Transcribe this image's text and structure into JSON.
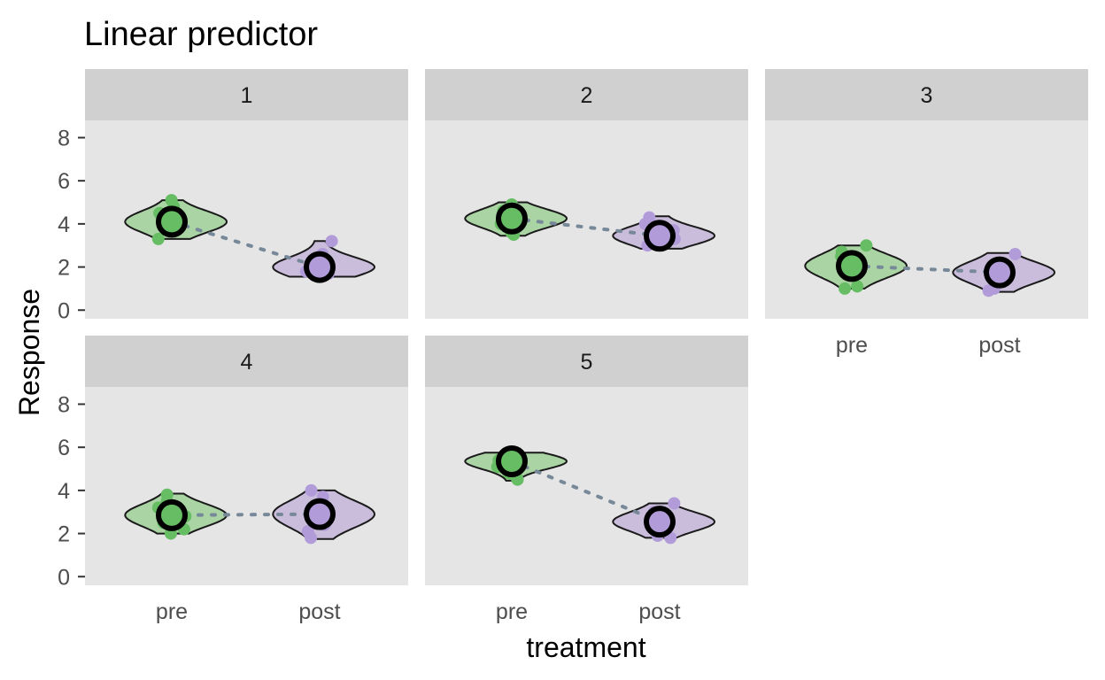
{
  "chart_data": {
    "type": "violin",
    "title": "Linear predictor",
    "xlabel": "treatment",
    "ylabel": "Response",
    "ylim": [
      -0.4,
      8.8
    ],
    "yticks": [
      0,
      2,
      4,
      6,
      8
    ],
    "ytick_labels": [
      "0",
      "2",
      "4",
      "6",
      "8"
    ],
    "categories": [
      "pre",
      "post"
    ],
    "grid": false,
    "legend": "none",
    "colors": {
      "pre": "#66bd63",
      "post": "#b19cd9",
      "pre_fill": "#aad4a4",
      "post_fill": "#c9bddb",
      "panel_bg": "#e5e5e5",
      "strip_bg": "#d0d0d0",
      "connector": "#778899",
      "outline": "#1a1a1a"
    },
    "panels": [
      {
        "label": "1",
        "summary": {
          "pre": 4.1,
          "post": 2.0
        },
        "violin_range": {
          "pre": [
            3.3,
            5.1
          ],
          "post": [
            1.55,
            3.2
          ]
        },
        "points": {
          "pre": [
            5.1,
            4.8,
            4.5,
            4.2,
            3.9,
            4.4,
            3.3
          ],
          "post": [
            3.2,
            2.6,
            2.2,
            1.9,
            1.7,
            2.4,
            1.8
          ]
        }
      },
      {
        "label": "2",
        "summary": {
          "pre": 4.25,
          "post": 3.45
        },
        "violin_range": {
          "pre": [
            3.45,
            5.0
          ],
          "post": [
            2.85,
            4.35
          ]
        },
        "points": {
          "pre": [
            4.9,
            4.6,
            4.3,
            4.0,
            3.5,
            3.6
          ],
          "post": [
            4.3,
            4.0,
            3.7,
            3.3,
            3.0,
            3.9
          ]
        }
      },
      {
        "label": "3",
        "summary": {
          "pre": 2.05,
          "post": 1.75
        },
        "violin_range": {
          "pre": [
            1.0,
            3.0
          ],
          "post": [
            0.85,
            2.65
          ]
        },
        "points": {
          "pre": [
            3.0,
            2.7,
            2.4,
            2.1,
            1.1,
            1.0,
            2.5
          ],
          "post": [
            2.6,
            2.2,
            1.9,
            1.5,
            1.0,
            0.9,
            2.0
          ]
        }
      },
      {
        "label": "4",
        "summary": {
          "pre": 2.85,
          "post": 2.9
        },
        "violin_range": {
          "pre": [
            2.0,
            3.85
          ],
          "post": [
            1.75,
            4.0
          ]
        },
        "points": {
          "pre": [
            3.8,
            3.5,
            3.2,
            2.8,
            2.5,
            2.2,
            2.0
          ],
          "post": [
            4.0,
            3.7,
            3.3,
            2.9,
            2.4,
            2.1,
            1.8
          ]
        }
      },
      {
        "label": "5",
        "summary": {
          "pre": 5.35,
          "post": 2.55
        },
        "violin_range": {
          "pre": [
            4.45,
            5.75
          ],
          "post": [
            1.8,
            3.4
          ]
        },
        "points": {
          "pre": [
            5.7,
            5.4,
            5.1,
            4.8,
            4.5,
            4.6
          ],
          "post": [
            3.4,
            3.0,
            2.6,
            2.2,
            1.9,
            1.8
          ]
        }
      }
    ]
  }
}
